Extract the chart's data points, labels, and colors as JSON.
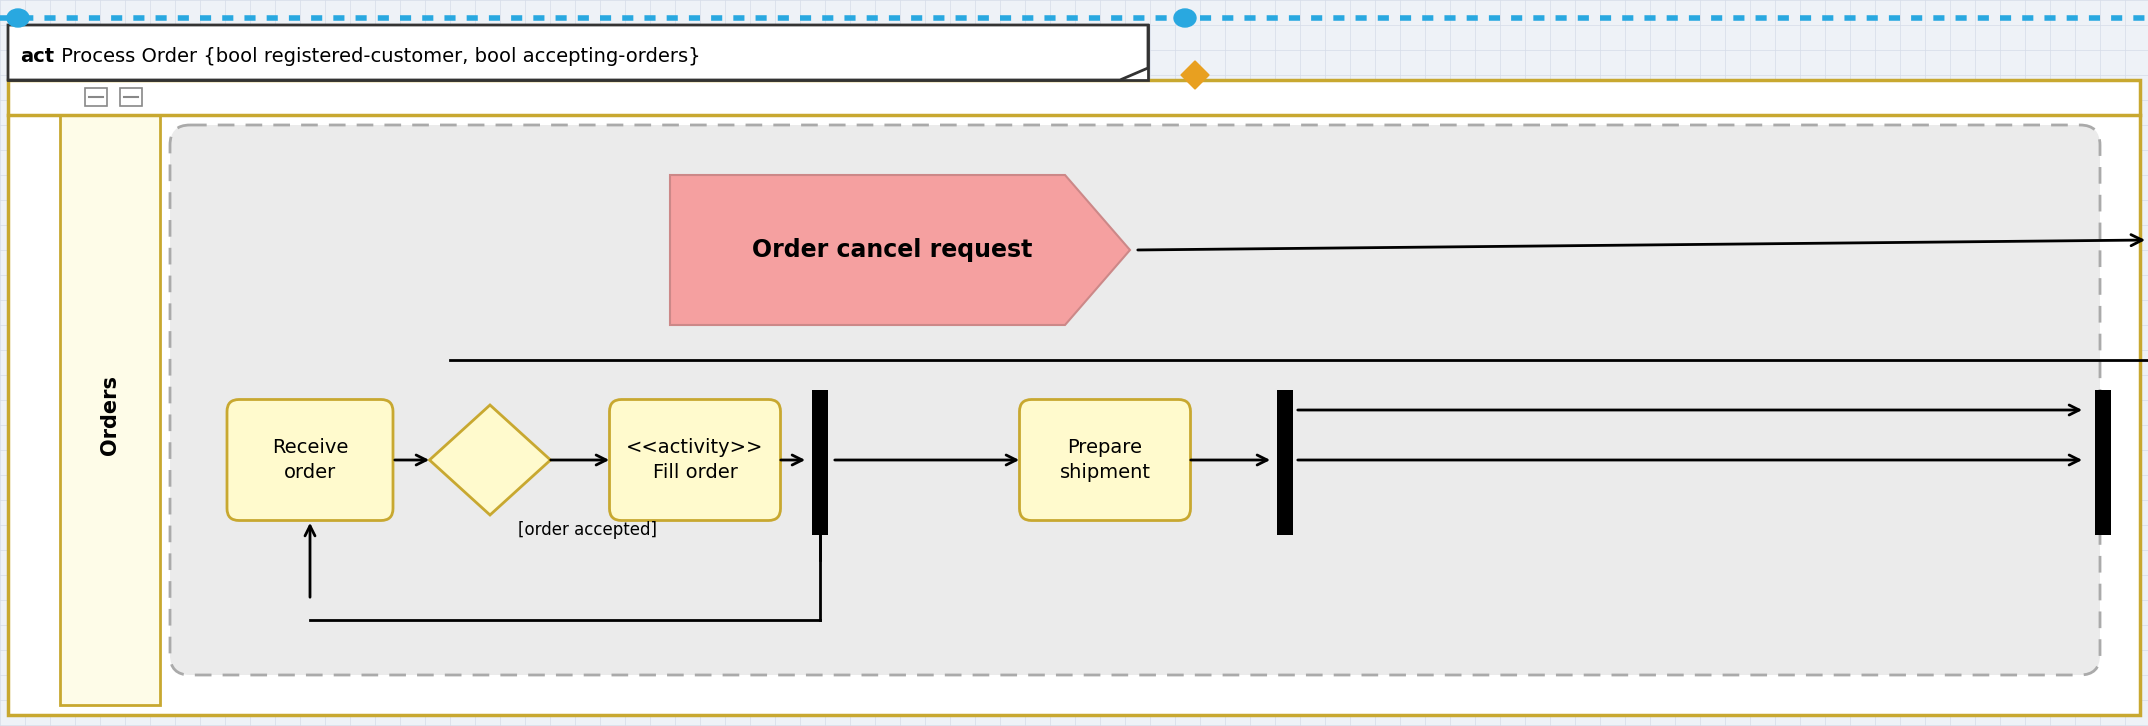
{
  "fig_width": 21.48,
  "fig_height": 7.26,
  "bg_color": "#eef2f7",
  "grid_color": "#d5dce8",
  "top_border_color": "#29a8e0",
  "outer_frame_color": "#c8a830",
  "outer_frame_top_color": "#c8a830",
  "swim_lane_label": "Orders",
  "swim_lane_bg": "#fefce8",
  "swim_lane_border": "#c8a830",
  "inner_frame_bg": "#ebebeb",
  "activity_box_bg": "#fffacd",
  "activity_box_border": "#c8a830",
  "cancel_shape_bg": "#f5a0a0",
  "cancel_shape_border": "#cc6666",
  "cancel_text": "Order cancel request",
  "label_order_accepted": "[order accepted]",
  "dot_color": "#29a8e0",
  "orange_diamond_color": "#e8a020",
  "title_bold": "act",
  "title_rest": " Process Order {bool registered-customer, bool accepting-orders}"
}
